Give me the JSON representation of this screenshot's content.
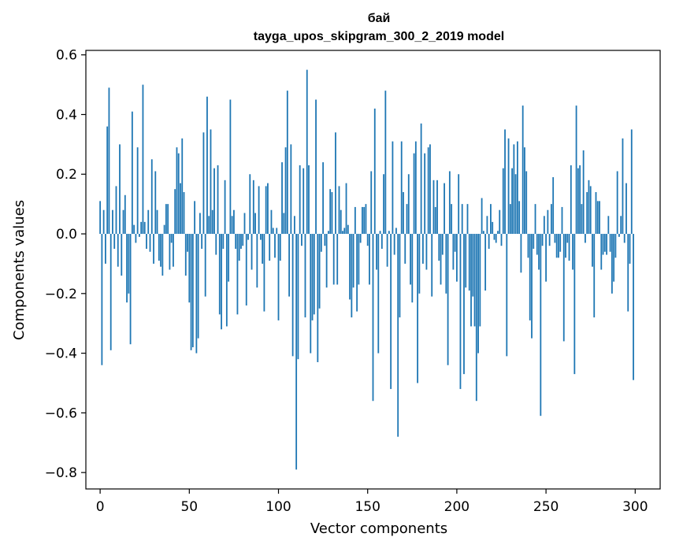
{
  "chart_data": {
    "type": "bar",
    "title": "бай",
    "subtitle": "tayga_upos_skipgram_300_2_2019 model",
    "xlabel": "Vector components",
    "ylabel": "Components values",
    "xlim": [
      -8,
      314
    ],
    "ylim": [
      -0.855,
      0.615
    ],
    "xticks": [
      0,
      50,
      100,
      150,
      200,
      250,
      300
    ],
    "xtick_labels": [
      "0",
      "50",
      "100",
      "150",
      "200",
      "250",
      "300"
    ],
    "yticks": [
      0.6,
      0.4,
      0.2,
      0.0,
      -0.2,
      -0.4,
      -0.6,
      -0.8
    ],
    "ytick_labels": [
      "0.6",
      "0.4",
      "0.2",
      "0.0",
      "−0.2",
      "−0.4",
      "−0.6",
      "−0.8"
    ],
    "bar_color": "#1f77b4",
    "grid": false,
    "series": [
      {
        "name": "бай",
        "values": [
          0.11,
          -0.44,
          0.08,
          -0.1,
          0.36,
          0.49,
          -0.39,
          0.08,
          -0.05,
          0.16,
          -0.11,
          0.3,
          -0.14,
          0.08,
          0.13,
          -0.23,
          -0.2,
          -0.37,
          0.41,
          0.03,
          -0.03,
          0.29,
          -0.01,
          0.04,
          0.5,
          0.04,
          -0.05,
          0.08,
          -0.06,
          0.25,
          -0.1,
          0.21,
          0.08,
          -0.09,
          -0.11,
          -0.14,
          0.03,
          0.1,
          0.1,
          -0.12,
          -0.03,
          -0.11,
          0.15,
          0.29,
          0.27,
          0.17,
          0.32,
          0.14,
          -0.14,
          -0.06,
          -0.23,
          -0.39,
          -0.38,
          0.11,
          -0.4,
          -0.35,
          0.07,
          -0.05,
          0.34,
          -0.21,
          0.46,
          0.06,
          0.35,
          0.08,
          0.22,
          -0.07,
          0.23,
          -0.27,
          -0.32,
          -0.05,
          0.18,
          -0.31,
          -0.16,
          0.45,
          0.06,
          0.08,
          -0.05,
          -0.27,
          -0.09,
          -0.05,
          -0.04,
          0.07,
          -0.24,
          -0.02,
          0.2,
          -0.12,
          0.18,
          0.07,
          -0.18,
          0.16,
          -0.02,
          -0.1,
          -0.26,
          0.16,
          0.17,
          -0.09,
          0.08,
          0.02,
          -0.08,
          0.02,
          -0.29,
          -0.09,
          0.24,
          0.07,
          0.29,
          0.48,
          -0.21,
          0.3,
          -0.41,
          0.06,
          -0.79,
          -0.42,
          0.23,
          -0.04,
          0.22,
          -0.28,
          0.55,
          0.23,
          -0.4,
          -0.29,
          -0.27,
          0.45,
          -0.43,
          -0.25,
          -0.06,
          0.24,
          -0.04,
          -0.18,
          0.01,
          0.15,
          0.14,
          -0.17,
          0.34,
          -0.17,
          0.16,
          0.08,
          0.01,
          0.02,
          0.17,
          0.03,
          -0.22,
          -0.28,
          -0.18,
          0.09,
          -0.26,
          -0.17,
          -0.03,
          0.09,
          0.09,
          0.1,
          -0.04,
          -0.17,
          0.21,
          -0.56,
          0.42,
          -0.12,
          -0.4,
          0.01,
          -0.05,
          0.2,
          0.48,
          -0.11,
          0.01,
          -0.52,
          0.31,
          -0.07,
          0.02,
          -0.68,
          -0.28,
          0.31,
          0.14,
          -0.1,
          0.1,
          0.2,
          -0.17,
          -0.23,
          0.27,
          0.31,
          -0.5,
          -0.2,
          0.37,
          -0.1,
          0.27,
          -0.12,
          0.29,
          0.3,
          -0.21,
          0.18,
          0.09,
          0.18,
          -0.09,
          -0.17,
          -0.07,
          0.17,
          -0.2,
          -0.44,
          0.21,
          0.1,
          -0.12,
          -0.06,
          -0.16,
          0.2,
          -0.52,
          0.1,
          -0.47,
          -0.18,
          0.1,
          -0.19,
          -0.31,
          -0.21,
          -0.31,
          -0.56,
          -0.4,
          -0.31,
          0.12,
          0.01,
          -0.19,
          0.06,
          -0.05,
          0.1,
          0.04,
          -0.02,
          -0.03,
          0.01,
          0.08,
          -0.04,
          0.22,
          0.35,
          -0.41,
          0.32,
          0.1,
          0.22,
          0.3,
          0.2,
          0.31,
          0.11,
          -0.13,
          0.43,
          0.29,
          0.21,
          -0.08,
          -0.29,
          -0.35,
          -0.05,
          0.1,
          -0.07,
          -0.12,
          -0.61,
          -0.04,
          0.06,
          -0.16,
          0.08,
          -0.04,
          0.1,
          0.19,
          -0.03,
          -0.08,
          -0.08,
          -0.06,
          0.09,
          -0.36,
          -0.08,
          -0.03,
          -0.09,
          0.23,
          -0.12,
          -0.47,
          0.43,
          0.22,
          0.23,
          0.1,
          0.28,
          -0.03,
          0.14,
          0.18,
          0.16,
          -0.11,
          -0.28,
          0.14,
          0.11,
          0.11,
          -0.12,
          -0.07,
          -0.06,
          -0.07,
          0.06,
          -0.06,
          -0.2,
          -0.16,
          -0.08,
          0.21,
          -0.01,
          0.06,
          0.32,
          -0.03,
          0.17,
          -0.26,
          -0.1,
          0.35,
          -0.49
        ]
      }
    ]
  }
}
